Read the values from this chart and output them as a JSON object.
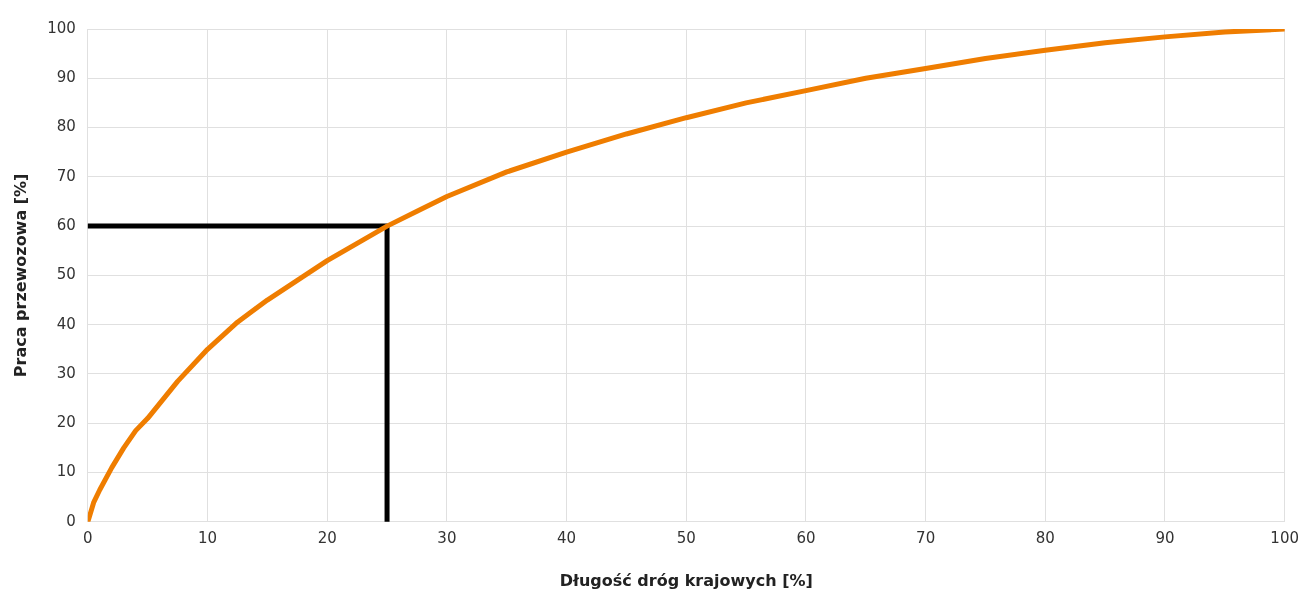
{
  "chart_data": {
    "type": "line",
    "xlabel": "Długość dróg krajowych [%]",
    "ylabel": "Praca przewozowa [%]",
    "xlim": [
      0,
      100
    ],
    "xticks": [
      0,
      10,
      20,
      30,
      40,
      50,
      60,
      70,
      80,
      90,
      100
    ],
    "ylim": [
      0,
      100
    ],
    "yticks": [
      0,
      10,
      20,
      30,
      40,
      50,
      60,
      70,
      80,
      90,
      100
    ],
    "grid": true,
    "legend": false,
    "marker": "none",
    "series": [
      {
        "color": "#ef7d00",
        "x": [
          0,
          0.5,
          1,
          2,
          3,
          4,
          5,
          7.5,
          10,
          12.5,
          15,
          17.5,
          20,
          22.5,
          25,
          27.5,
          30,
          35,
          40,
          45,
          50,
          55,
          60,
          65,
          70,
          75,
          80,
          85,
          90,
          95,
          100
        ],
        "values": [
          0,
          4,
          6.5,
          11,
          15,
          18.5,
          21,
          28.5,
          35,
          40.5,
          45,
          49,
          53,
          56.5,
          60,
          63,
          66,
          71,
          75,
          78.7,
          82,
          85,
          87.5,
          90,
          92,
          94,
          95.7,
          97.2,
          98.4,
          99.4,
          100
        ]
      },
      {
        "color": "#000000",
        "x": [
          0,
          25,
          25
        ],
        "values": [
          60,
          60,
          0
        ]
      }
    ]
  }
}
